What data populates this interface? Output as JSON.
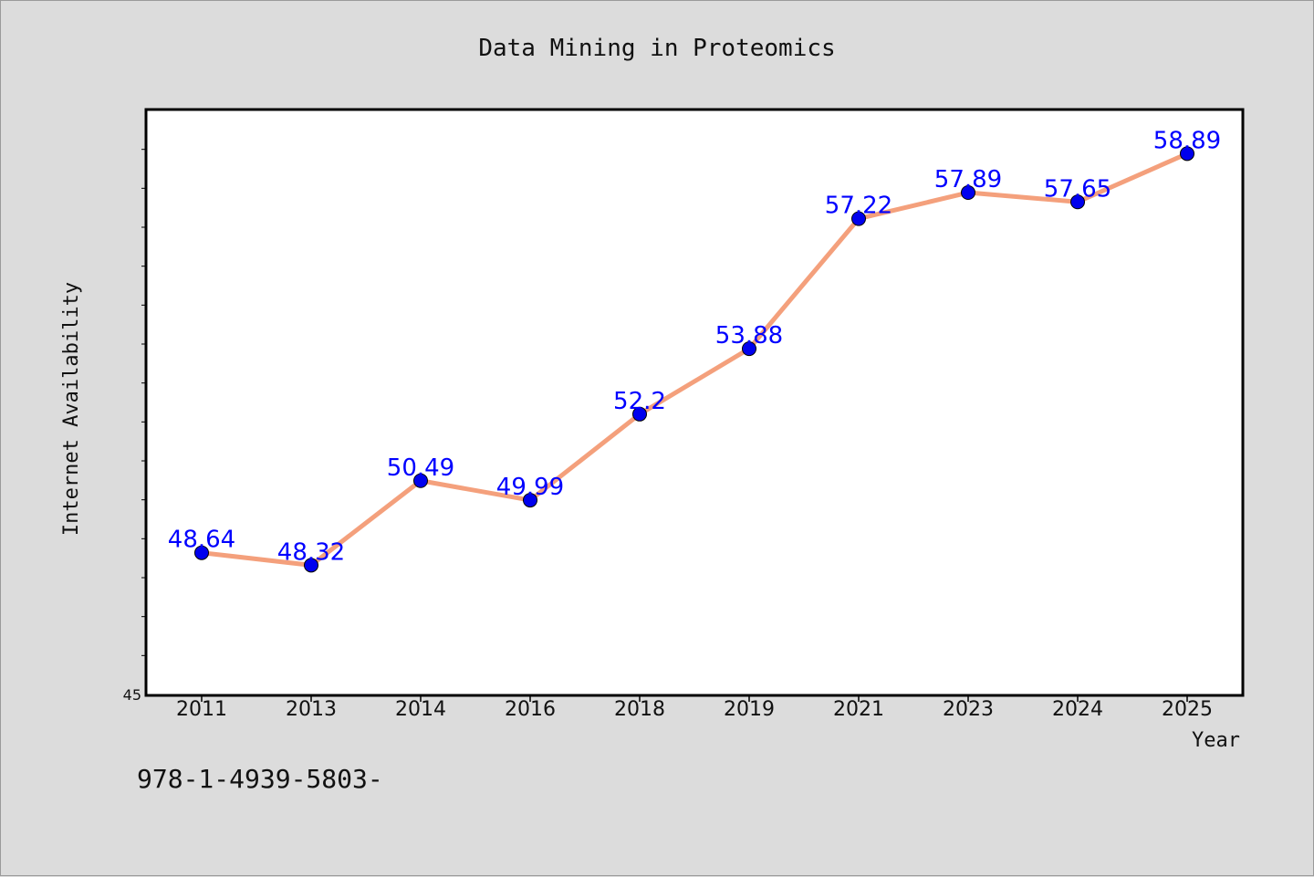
{
  "footer_text": "978-1-4939-5803-",
  "chart_data": {
    "type": "line",
    "title": "Data Mining in Proteomics",
    "xlabel": "Year",
    "ylabel": "Internet Availability",
    "categories": [
      "2011",
      "2013",
      "2014",
      "2016",
      "2018",
      "2019",
      "2021",
      "2023",
      "2024",
      "2025"
    ],
    "series": [
      {
        "values": [
          48.64,
          48.32,
          50.49,
          49.99,
          52.2,
          53.88,
          57.22,
          57.89,
          57.65,
          58.89
        ],
        "labels": [
          "48.64",
          "48.32",
          "50.49",
          "49.99",
          "52.2",
          "53.88",
          "57.22",
          "57.89",
          "57.65",
          "58.89"
        ],
        "line_color": "#f4a07c",
        "marker_color": "#0000ee"
      }
    ],
    "yaxis": {
      "min": 45,
      "max": 60,
      "ticks_shown": [
        "45"
      ],
      "minor_step": 1
    },
    "grid": false,
    "legend": "none",
    "background": "#dcdcdc",
    "plot_background": "#ffffff"
  }
}
